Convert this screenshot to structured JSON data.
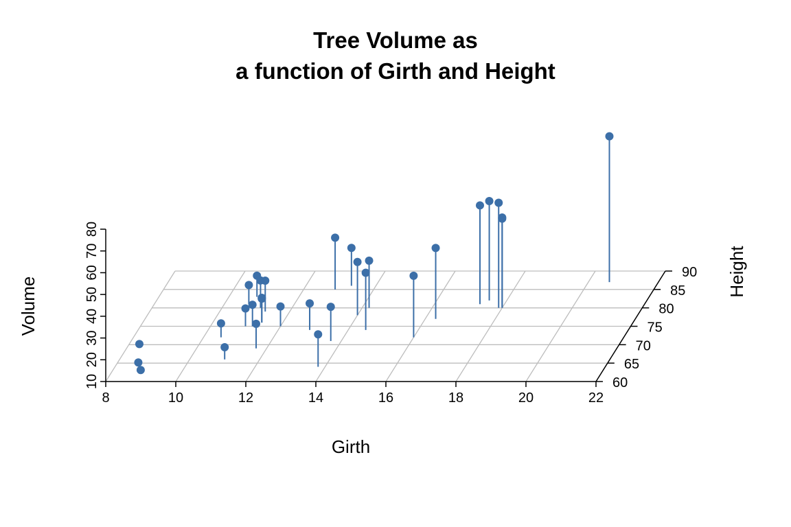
{
  "chart_data": {
    "type": "scatter",
    "title_lines": [
      "Tree Volume as",
      "a function of Girth and Height"
    ],
    "xlabel": "Girth",
    "ylabel": "Height",
    "zlabel": "Volume",
    "xlim": [
      8,
      22
    ],
    "ylim": [
      60,
      90
    ],
    "zlim": [
      10,
      80
    ],
    "x_ticks": [
      "8",
      "10",
      "12",
      "14",
      "16",
      "18",
      "20",
      "22"
    ],
    "y_ticks": [
      "60",
      "65",
      "70",
      "75",
      "80",
      "85",
      "90"
    ],
    "z_ticks": [
      "10",
      "20",
      "30",
      "40",
      "50",
      "60",
      "70",
      "80"
    ],
    "x_tick_values": [
      8,
      10,
      12,
      14,
      16,
      18,
      20,
      22
    ],
    "y_tick_values": [
      60,
      65,
      70,
      75,
      80,
      85,
      90
    ],
    "z_tick_values": [
      10,
      20,
      30,
      40,
      50,
      60,
      70,
      80
    ],
    "grid": true,
    "point_color": "#3c6fa8",
    "points": [
      {
        "x": 8.3,
        "y": 70,
        "z": 10.3
      },
      {
        "x": 8.6,
        "y": 65,
        "z": 10.3
      },
      {
        "x": 8.8,
        "y": 63,
        "z": 10.2
      },
      {
        "x": 10.5,
        "y": 72,
        "z": 16.4
      },
      {
        "x": 10.7,
        "y": 81,
        "z": 18.8
      },
      {
        "x": 10.8,
        "y": 83,
        "z": 19.7
      },
      {
        "x": 11.0,
        "y": 66,
        "z": 15.6
      },
      {
        "x": 11.0,
        "y": 75,
        "z": 18.2
      },
      {
        "x": 11.1,
        "y": 80,
        "z": 22.6
      },
      {
        "x": 11.2,
        "y": 75,
        "z": 19.9
      },
      {
        "x": 11.3,
        "y": 79,
        "z": 24.2
      },
      {
        "x": 11.4,
        "y": 76,
        "z": 21.0
      },
      {
        "x": 11.4,
        "y": 76,
        "z": 21.4
      },
      {
        "x": 11.7,
        "y": 69,
        "z": 21.3
      },
      {
        "x": 12.0,
        "y": 75,
        "z": 19.1
      },
      {
        "x": 12.9,
        "y": 74,
        "z": 22.2
      },
      {
        "x": 12.9,
        "y": 85,
        "z": 33.8
      },
      {
        "x": 13.3,
        "y": 86,
        "z": 27.4
      },
      {
        "x": 13.7,
        "y": 71,
        "z": 25.7
      },
      {
        "x": 13.8,
        "y": 64,
        "z": 24.9
      },
      {
        "x": 14.0,
        "y": 78,
        "z": 34.5
      },
      {
        "x": 14.2,
        "y": 80,
        "z": 31.7
      },
      {
        "x": 14.5,
        "y": 74,
        "z": 36.3
      },
      {
        "x": 16.0,
        "y": 72,
        "z": 38.3
      },
      {
        "x": 16.3,
        "y": 77,
        "z": 42.6
      },
      {
        "x": 17.3,
        "y": 81,
        "z": 55.4
      },
      {
        "x": 17.5,
        "y": 82,
        "z": 55.7
      },
      {
        "x": 17.9,
        "y": 80,
        "z": 58.3
      },
      {
        "x": 18.0,
        "y": 80,
        "z": 51.5
      },
      {
        "x": 18.0,
        "y": 80,
        "z": 51.0
      },
      {
        "x": 20.6,
        "y": 87,
        "z": 77.0
      }
    ]
  }
}
